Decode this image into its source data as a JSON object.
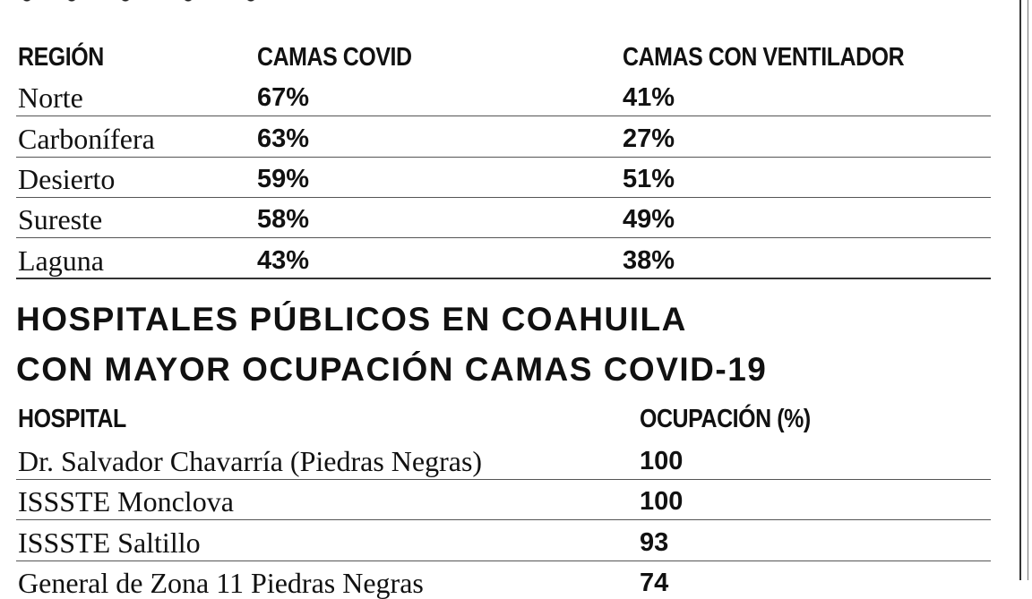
{
  "regions_table": {
    "headers": {
      "region": "REGIÓN",
      "covid_beds": "CAMAS COVID",
      "ventilator_beds": "CAMAS CON VENTILADOR"
    },
    "rows": [
      {
        "region": "Norte",
        "covid_beds": "67%",
        "ventilator_beds": "41%"
      },
      {
        "region": "Carbonífera",
        "covid_beds": "63%",
        "ventilator_beds": "27%"
      },
      {
        "region": "Desierto",
        "covid_beds": "59%",
        "ventilator_beds": "51%"
      },
      {
        "region": "Sureste",
        "covid_beds": "58%",
        "ventilator_beds": "49%"
      },
      {
        "region": "Laguna",
        "covid_beds": "43%",
        "ventilator_beds": "38%"
      }
    ]
  },
  "hospitals_section": {
    "title_line_1": "HOSPITALES PÚBLICOS EN COAHUILA",
    "title_line_2": "CON MAYOR OCUPACIÓN CAMAS COVID-19",
    "headers": {
      "hospital": "HOSPITAL",
      "occupancy": "OCUPACIÓN (%)"
    },
    "rows": [
      {
        "hospital": "Dr. Salvador Chavarría (Piedras Negras)",
        "occupancy": "100"
      },
      {
        "hospital": "ISSSTE Monclova",
        "occupancy": "100"
      },
      {
        "hospital": "ISSSTE Saltillo",
        "occupancy": "93"
      },
      {
        "hospital": "General de Zona 11 Piedras Negras",
        "occupancy": "74"
      }
    ]
  }
}
